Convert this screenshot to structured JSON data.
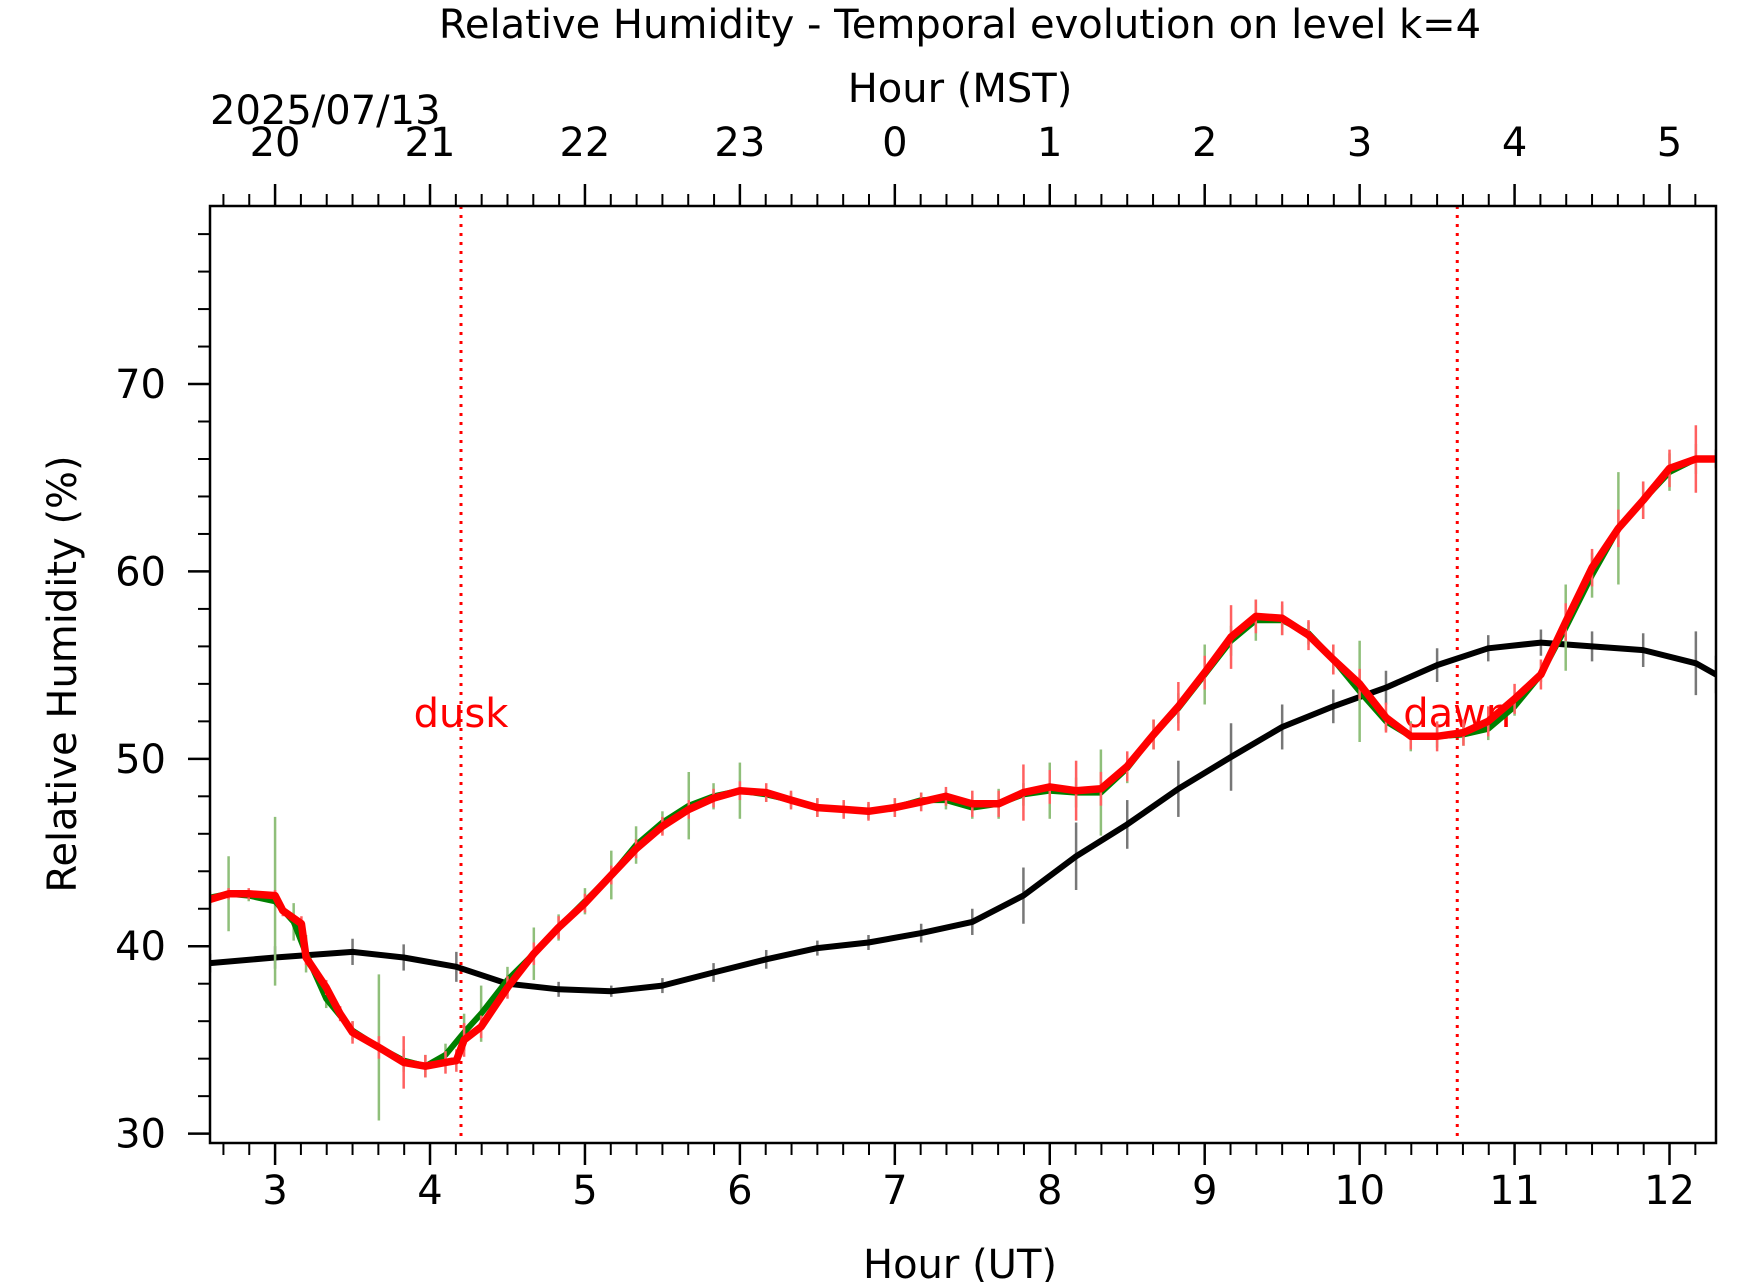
{
  "chart_data": {
    "type": "line",
    "title": "Relative Humidity - Temporal evolution on level k=4",
    "xlabel": "Hour (UT)",
    "ylabel": "Relative Humidity (%)",
    "top_xlabel": "Hour (MST)",
    "date_label": "2025/07/13",
    "xlim": [
      2.58,
      12.3
    ],
    "ylim": [
      29.5,
      79.5
    ],
    "grid": false,
    "x_ticks": [
      3,
      4,
      5,
      6,
      7,
      8,
      9,
      10,
      11,
      12
    ],
    "x_tick_labels": [
      "3",
      "4",
      "5",
      "6",
      "7",
      "8",
      "9",
      "10",
      "11",
      "12"
    ],
    "y_ticks": [
      30,
      40,
      50,
      60,
      70
    ],
    "y_tick_labels": [
      "30",
      "40",
      "50",
      "60",
      "70"
    ],
    "top_ticks": [
      3,
      4,
      5,
      6,
      7,
      8,
      9,
      10,
      11,
      12
    ],
    "top_tick_labels": [
      "20",
      "21",
      "22",
      "23",
      "0",
      "1",
      "2",
      "3",
      "4",
      "5"
    ],
    "events": [
      {
        "label": "dusk",
        "x": 4.2,
        "color": "#ff0000"
      },
      {
        "label": "dawn",
        "x": 10.63,
        "color": "#ff0000"
      }
    ],
    "series": [
      {
        "color": "#000000",
        "x": [
          2.58,
          3.0,
          3.5,
          3.83,
          4.17,
          4.5,
          4.83,
          5.17,
          5.5,
          5.83,
          6.17,
          6.5,
          6.83,
          7.17,
          7.5,
          7.83,
          8.17,
          8.5,
          8.83,
          9.17,
          9.5,
          9.83,
          10.17,
          10.5,
          10.83,
          11.17,
          11.5,
          11.83,
          12.17,
          12.3
        ],
        "y": [
          39.1,
          39.4,
          39.7,
          39.4,
          38.9,
          38.0,
          37.7,
          37.6,
          37.9,
          38.6,
          39.3,
          39.9,
          40.2,
          40.7,
          41.3,
          42.7,
          44.8,
          46.5,
          48.4,
          50.1,
          51.7,
          52.8,
          53.8,
          55.0,
          55.9,
          56.2,
          56.0,
          55.8,
          55.1,
          54.5
        ],
        "err": [
          0.5,
          0.6,
          0.7,
          0.7,
          0.8,
          0.5,
          0.4,
          0.3,
          0.4,
          0.5,
          0.5,
          0.4,
          0.4,
          0.5,
          0.7,
          1.5,
          1.8,
          1.3,
          1.5,
          1.8,
          1.2,
          0.9,
          0.9,
          0.9,
          0.7,
          0.7,
          0.8,
          0.9,
          1.7,
          1.0
        ]
      },
      {
        "color": "#008000",
        "x": [
          2.58,
          2.7,
          2.83,
          3.0,
          3.12,
          3.2,
          3.33,
          3.5,
          3.67,
          3.83,
          3.97,
          4.1,
          4.22,
          4.33,
          4.5,
          4.67,
          4.83,
          5.0,
          5.17,
          5.33,
          5.5,
          5.67,
          5.83,
          6.0,
          6.17,
          6.33,
          6.5,
          6.67,
          6.83,
          7.0,
          7.17,
          7.33,
          7.5,
          7.67,
          7.83,
          8.0,
          8.17,
          8.33,
          8.5,
          8.67,
          8.83,
          9.0,
          9.17,
          9.33,
          9.5,
          9.67,
          9.83,
          10.0,
          10.17,
          10.33,
          10.5,
          10.67,
          10.83,
          11.0,
          11.17,
          11.33,
          11.5,
          11.67,
          11.83,
          12.0,
          12.17,
          12.3
        ],
        "y": [
          42.6,
          42.8,
          42.7,
          42.4,
          41.3,
          39.6,
          37.2,
          35.5,
          34.6,
          33.9,
          33.6,
          34.2,
          35.4,
          36.4,
          38.2,
          39.6,
          41.0,
          42.4,
          43.8,
          45.4,
          46.6,
          47.5,
          48.0,
          48.3,
          48.1,
          47.8,
          47.4,
          47.3,
          47.2,
          47.4,
          47.8,
          47.8,
          47.4,
          47.6,
          48.1,
          48.3,
          48.2,
          48.2,
          49.5,
          51.3,
          52.7,
          54.5,
          56.3,
          57.4,
          57.4,
          56.7,
          55.3,
          53.6,
          52.0,
          51.2,
          51.2,
          51.3,
          51.6,
          52.8,
          54.5,
          57.0,
          59.8,
          62.3,
          63.8,
          65.3,
          66.0,
          66.0
        ],
        "err": [
          0.3,
          2.0,
          0.3,
          4.5,
          1.0,
          1.0,
          0.5,
          0.5,
          3.9,
          0.6,
          0.6,
          0.6,
          1.0,
          1.5,
          0.7,
          1.4,
          0.7,
          0.7,
          1.3,
          1.0,
          0.6,
          1.8,
          0.7,
          1.5,
          0.4,
          0.4,
          0.5,
          0.4,
          0.4,
          0.5,
          0.4,
          0.5,
          0.6,
          0.8,
          0.6,
          1.5,
          0.8,
          2.3,
          0.8,
          0.8,
          0.8,
          1.6,
          0.8,
          1.1,
          0.8,
          0.6,
          0.8,
          2.7,
          0.5,
          0.8,
          0.6,
          0.6,
          0.6,
          0.5,
          0.4,
          2.3,
          1.2,
          3.0,
          1.0,
          1.0,
          0.8,
          0.5
        ]
      },
      {
        "color": "#ff0000",
        "x": [
          2.58,
          2.7,
          2.83,
          3.0,
          3.05,
          3.17,
          3.2,
          3.33,
          3.42,
          3.5,
          3.67,
          3.83,
          3.97,
          4.1,
          4.17,
          4.22,
          4.33,
          4.5,
          4.67,
          4.83,
          5.0,
          5.17,
          5.33,
          5.5,
          5.67,
          5.83,
          6.0,
          6.17,
          6.33,
          6.5,
          6.67,
          6.83,
          7.0,
          7.17,
          7.33,
          7.5,
          7.67,
          7.83,
          8.0,
          8.17,
          8.33,
          8.5,
          8.67,
          8.83,
          9.0,
          9.17,
          9.33,
          9.5,
          9.67,
          9.83,
          10.0,
          10.17,
          10.33,
          10.5,
          10.67,
          10.83,
          11.0,
          11.17,
          11.33,
          11.5,
          11.67,
          11.83,
          12.0,
          12.17,
          12.3
        ],
        "y": [
          42.5,
          42.8,
          42.8,
          42.7,
          41.9,
          41.2,
          39.4,
          37.8,
          36.4,
          35.4,
          34.6,
          33.8,
          33.6,
          33.8,
          33.9,
          35.0,
          35.7,
          37.8,
          39.6,
          41.0,
          42.3,
          43.8,
          45.2,
          46.4,
          47.3,
          47.9,
          48.3,
          48.2,
          47.8,
          47.4,
          47.3,
          47.2,
          47.4,
          47.7,
          48.0,
          47.6,
          47.6,
          48.2,
          48.5,
          48.3,
          48.4,
          49.6,
          51.3,
          52.8,
          54.6,
          56.5,
          57.6,
          57.5,
          56.6,
          55.3,
          54.0,
          52.2,
          51.2,
          51.2,
          51.4,
          52.0,
          53.2,
          54.5,
          57.3,
          60.2,
          62.3,
          63.8,
          65.5,
          66.0,
          66.0
        ],
        "err": [
          0.3,
          0.3,
          0.3,
          0.3,
          0.3,
          0.4,
          0.4,
          0.4,
          0.4,
          0.6,
          0.6,
          1.4,
          0.6,
          0.6,
          0.6,
          0.9,
          0.6,
          0.6,
          0.6,
          0.6,
          0.5,
          0.5,
          0.5,
          0.5,
          0.5,
          0.5,
          0.5,
          0.5,
          0.5,
          0.5,
          0.5,
          0.5,
          0.5,
          0.5,
          0.5,
          0.7,
          0.7,
          1.5,
          0.9,
          1.6,
          0.9,
          0.8,
          0.8,
          1.3,
          0.9,
          1.7,
          0.9,
          0.9,
          0.8,
          0.8,
          0.8,
          0.8,
          0.7,
          0.8,
          0.7,
          0.8,
          0.8,
          0.8,
          1.0,
          1.0,
          1.0,
          1.0,
          1.0,
          1.8,
          0.5
        ]
      }
    ]
  }
}
